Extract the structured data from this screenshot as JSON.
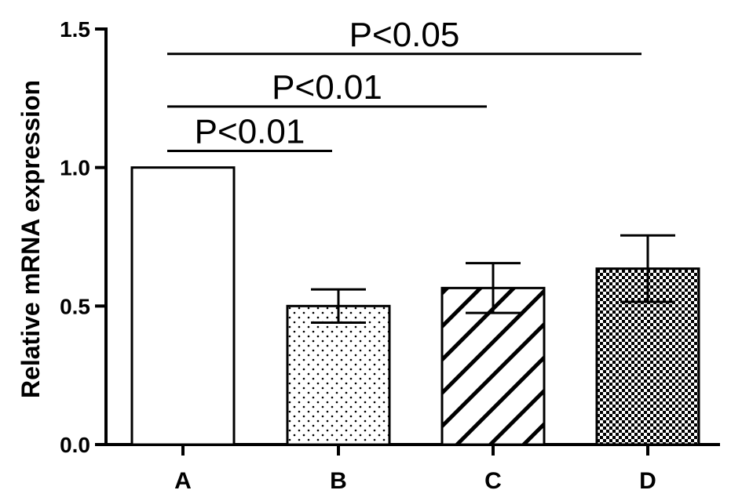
{
  "chart_data": {
    "type": "bar",
    "ylabel": "Relative mRNA expression",
    "ylim": [
      0,
      1.5
    ],
    "yticks": [
      {
        "value": 0.0,
        "label": "0.0"
      },
      {
        "value": 0.5,
        "label": "0.5"
      },
      {
        "value": 1.0,
        "label": "1.0"
      },
      {
        "value": 1.5,
        "label": "1.5"
      }
    ],
    "categories": [
      "A",
      "B",
      "C",
      "D"
    ],
    "values": [
      1.0,
      0.5,
      0.565,
      0.635
    ],
    "errors": [
      0,
      0.06,
      0.09,
      0.12
    ],
    "patterns": [
      "none",
      "dots",
      "diagonal-hatch",
      "checkerboard"
    ],
    "grid": false,
    "significance": [
      {
        "from": "A",
        "to": "B",
        "label": "P<0.01",
        "y": 1.06
      },
      {
        "from": "A",
        "to": "C",
        "label": "P<0.01",
        "y": 1.22
      },
      {
        "from": "A",
        "to": "D",
        "label": "P<0.05",
        "y": 1.41
      }
    ],
    "colors": {
      "fill": "#ffffff",
      "stroke": "#000000"
    }
  }
}
